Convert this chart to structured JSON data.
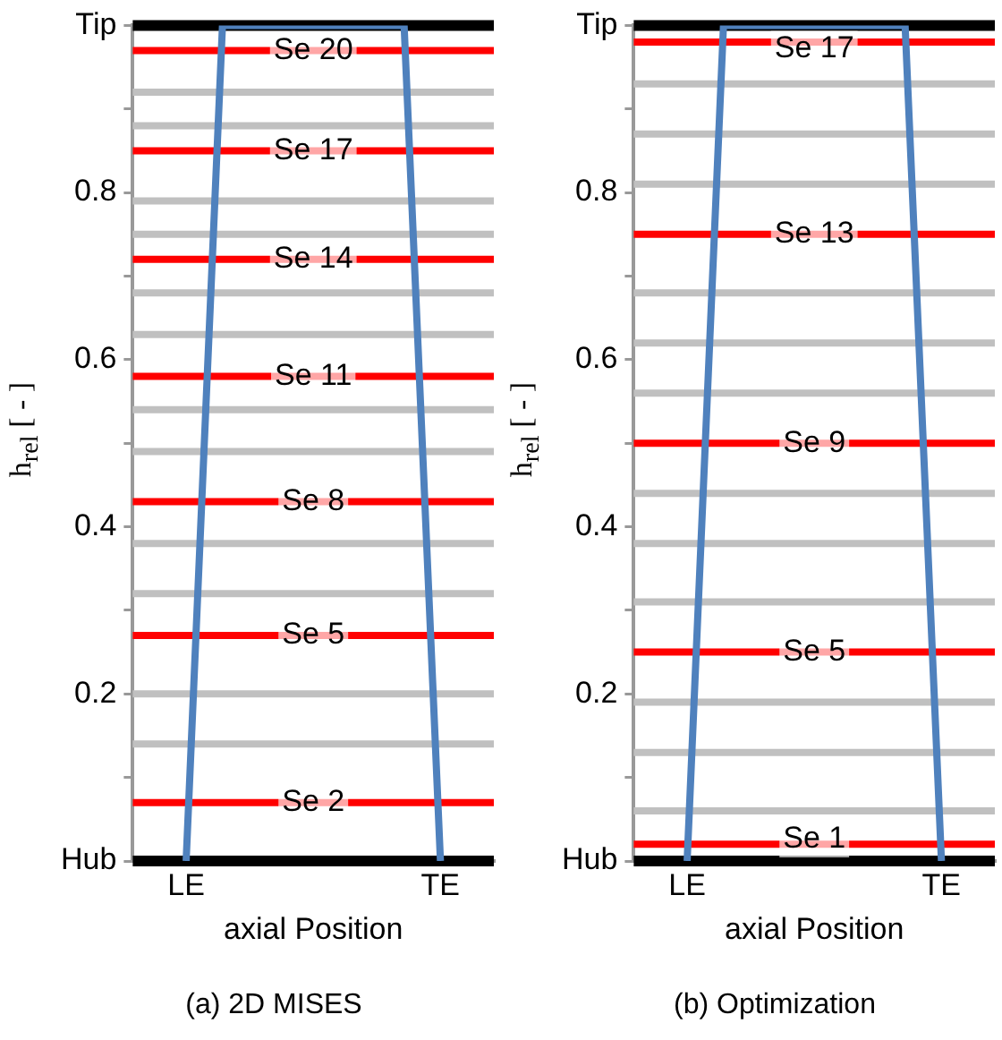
{
  "chart_data": [
    {
      "type": "line",
      "title": "(a) 2D MISES",
      "xlabel": "axial Position",
      "ylabel": "h$_{rel}$ [ - ]",
      "marker": "none",
      "legend": false,
      "grid": false,
      "categories": [
        "LE",
        null,
        null,
        null,
        null,
        null,
        null,
        "TE"
      ],
      "series": [
        {
          "values": [
            0,
            1,
            1,
            1,
            1,
            1,
            1,
            0
          ],
          "color": "#4f81bd"
        }
      ],
      "ylim": [
        0,
        1
      ],
      "yticks": [
        {
          "value": 0,
          "label": "Hub"
        },
        {
          "value": 0.1,
          "label": null
        },
        0.2,
        {
          "value": 0.3,
          "label": null
        },
        0.4,
        {
          "value": 0.5,
          "label": null
        },
        0.6,
        {
          "value": 0.7,
          "label": null
        },
        0.8,
        {
          "value": 0.9,
          "label": null
        },
        {
          "value": 1,
          "label": "Tip"
        }
      ],
      "ref_lines": [
        {
          "axis": "y",
          "value": 0,
          "color": "#000000"
        },
        {
          "axis": "y",
          "value": 1,
          "color": "#000000"
        },
        {
          "axis": "y",
          "value": 0.07,
          "label": "Se 2",
          "color": "#ff0000"
        },
        {
          "axis": "y",
          "value": 0.14,
          "color": "#c0c0c0"
        },
        {
          "axis": "y",
          "value": 0.2,
          "color": "#c0c0c0"
        },
        {
          "axis": "y",
          "value": 0.27,
          "label": "Se 5",
          "color": "#ff0000"
        },
        {
          "axis": "y",
          "value": 0.32,
          "color": "#c0c0c0"
        },
        {
          "axis": "y",
          "value": 0.38,
          "color": "#c0c0c0"
        },
        {
          "axis": "y",
          "value": 0.43,
          "label": "Se 8",
          "color": "#ff0000"
        },
        {
          "axis": "y",
          "value": 0.49,
          "color": "#c0c0c0"
        },
        {
          "axis": "y",
          "value": 0.54,
          "color": "#c0c0c0"
        },
        {
          "axis": "y",
          "value": 0.58,
          "label": "Se 11",
          "color": "#ff0000"
        },
        {
          "axis": "y",
          "value": 0.63,
          "color": "#c0c0c0"
        },
        {
          "axis": "y",
          "value": 0.68,
          "color": "#c0c0c0"
        },
        {
          "axis": "y",
          "value": 0.72,
          "label": "Se 14",
          "color": "#ff0000"
        },
        {
          "axis": "y",
          "value": 0.75,
          "color": "#c0c0c0"
        },
        {
          "axis": "y",
          "value": 0.79,
          "color": "#c0c0c0"
        },
        {
          "axis": "y",
          "value": 0.85,
          "label": "Se 17",
          "color": "#ff0000"
        },
        {
          "axis": "y",
          "value": 0.88,
          "color": "#c0c0c0"
        },
        {
          "axis": "y",
          "value": 0.92,
          "color": "#c0c0c0"
        },
        {
          "axis": "y",
          "value": 0.97,
          "label": "Se 20",
          "color": "#ff0000"
        }
      ]
    },
    {
      "type": "line",
      "title": "(b) Optimization",
      "xlabel": "axial Position",
      "ylabel": "h$_{rel}$ [ - ]",
      "marker": "none",
      "legend": false,
      "grid": false,
      "categories": [
        "LE",
        null,
        null,
        null,
        null,
        null,
        null,
        "TE"
      ],
      "series": [
        {
          "values": [
            0,
            1,
            1,
            1,
            1,
            1,
            1,
            0
          ],
          "color": "#4f81bd"
        }
      ],
      "ylim": [
        0,
        1
      ],
      "yticks": [
        {
          "value": 0,
          "label": "Hub"
        },
        {
          "value": 0.1,
          "label": null
        },
        0.2,
        {
          "value": 0.3,
          "label": null
        },
        0.4,
        {
          "value": 0.5,
          "label": null
        },
        0.6,
        {
          "value": 0.7,
          "label": null
        },
        0.8,
        {
          "value": 0.9,
          "label": null
        },
        {
          "value": 1,
          "label": "Tip"
        }
      ],
      "ref_lines": [
        {
          "axis": "y",
          "value": 0,
          "color": "#000000"
        },
        {
          "axis": "y",
          "value": 1,
          "color": "#000000"
        },
        {
          "axis": "y",
          "value": 0.02,
          "label": "Se 1",
          "color": "#ff0000"
        },
        {
          "axis": "y",
          "value": 0.06,
          "color": "#c0c0c0"
        },
        {
          "axis": "y",
          "value": 0.13,
          "color": "#c0c0c0"
        },
        {
          "axis": "y",
          "value": 0.19,
          "color": "#c0c0c0"
        },
        {
          "axis": "y",
          "value": 0.25,
          "label": "Se 5",
          "color": "#ff0000"
        },
        {
          "axis": "y",
          "value": 0.31,
          "color": "#c0c0c0"
        },
        {
          "axis": "y",
          "value": 0.38,
          "color": "#c0c0c0"
        },
        {
          "axis": "y",
          "value": 0.44,
          "color": "#c0c0c0"
        },
        {
          "axis": "y",
          "value": 0.5,
          "label": "Se 9",
          "color": "#ff0000"
        },
        {
          "axis": "y",
          "value": 0.56,
          "color": "#c0c0c0"
        },
        {
          "axis": "y",
          "value": 0.62,
          "color": "#c0c0c0"
        },
        {
          "axis": "y",
          "value": 0.68,
          "color": "#c0c0c0"
        },
        {
          "axis": "y",
          "value": 0.75,
          "label": "Se 13",
          "color": "#ff0000"
        },
        {
          "axis": "y",
          "value": 0.81,
          "color": "#c0c0c0"
        },
        {
          "axis": "y",
          "value": 0.87,
          "color": "#c0c0c0"
        },
        {
          "axis": "y",
          "value": 0.93,
          "color": "#c0c0c0"
        },
        {
          "axis": "y",
          "value": 0.98,
          "label": "Se 17",
          "color": "#ff0000"
        }
      ]
    }
  ]
}
